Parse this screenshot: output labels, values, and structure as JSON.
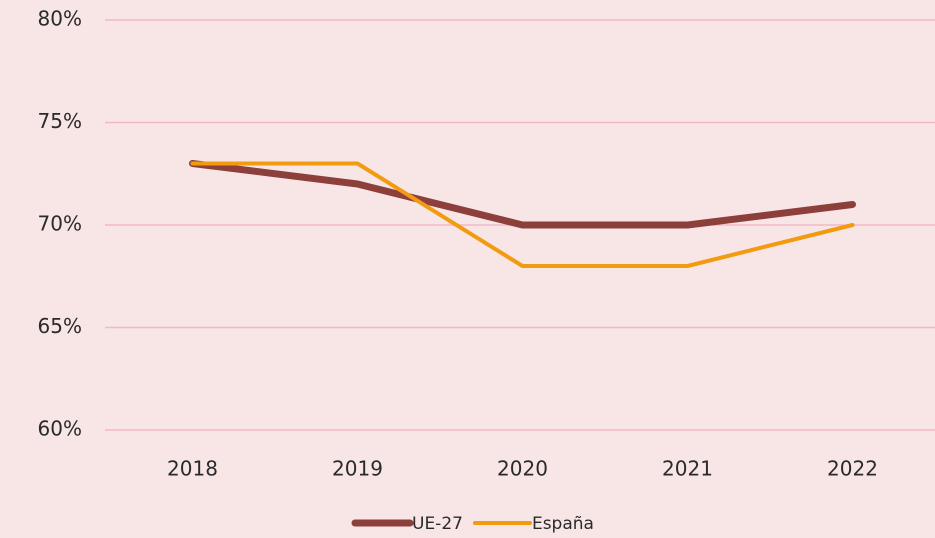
{
  "chart_data": {
    "type": "line",
    "categories": [
      "2018",
      "2019",
      "2020",
      "2021",
      "2022"
    ],
    "series": [
      {
        "name": "UE-27",
        "color": "#8c3f3b",
        "values": [
          73,
          72,
          70,
          70,
          71
        ]
      },
      {
        "name": "España",
        "color": "#f29a10",
        "values": [
          73,
          73,
          68,
          68,
          70
        ]
      }
    ],
    "ylim": [
      60,
      80
    ],
    "yticks": [
      {
        "value": 60,
        "label": "60%"
      },
      {
        "value": 65,
        "label": "65%"
      },
      {
        "value": 70,
        "label": "70%"
      },
      {
        "value": 75,
        "label": "75%"
      },
      {
        "value": 80,
        "label": "80%"
      }
    ],
    "grid": true,
    "legend": "bottom"
  }
}
